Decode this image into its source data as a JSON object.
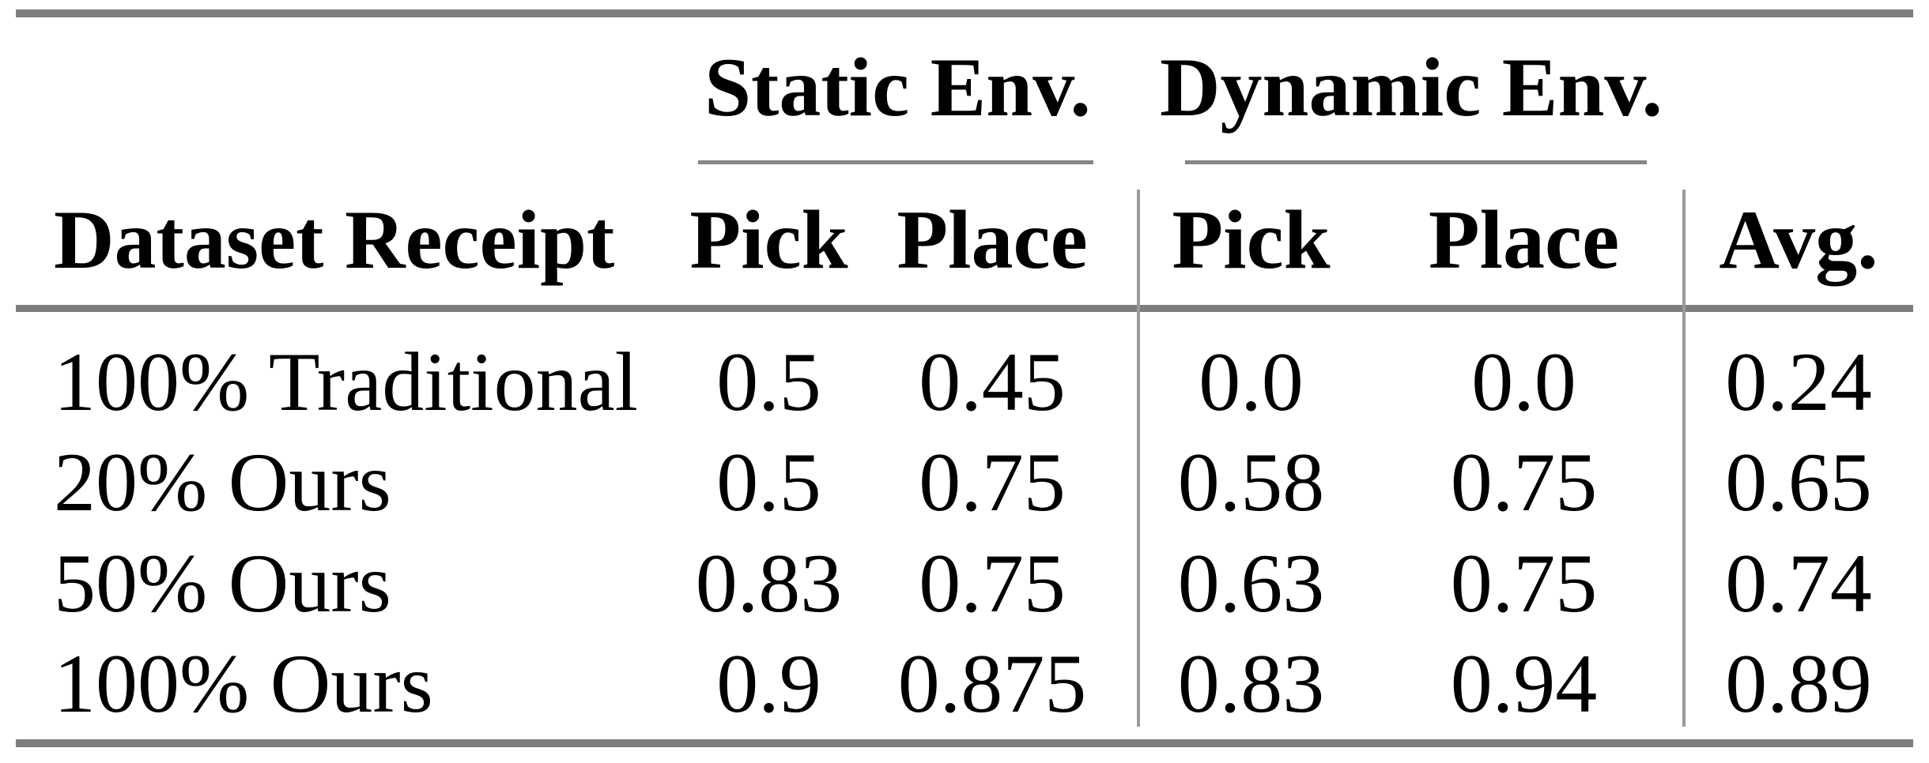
{
  "table": {
    "groups": [
      {
        "label": "Static Env."
      },
      {
        "label": "Dynamic Env."
      }
    ],
    "columns": [
      "Dataset Receipt",
      "Pick",
      "Place",
      "Pick",
      "Place",
      "Avg."
    ],
    "rows": [
      {
        "label": "100% Traditional",
        "values": [
          "0.5",
          "0.45",
          "0.0",
          "0.0",
          "0.24"
        ]
      },
      {
        "label": "20% Ours",
        "values": [
          "0.5",
          "0.75",
          "0.58",
          "0.75",
          "0.65"
        ]
      },
      {
        "label": "50% Ours",
        "values": [
          "0.83",
          "0.75",
          "0.63",
          "0.75",
          "0.74"
        ]
      },
      {
        "label": "100% Ours",
        "values": [
          "0.9",
          "0.875",
          "0.83",
          "0.94",
          "0.89"
        ]
      }
    ],
    "colors": {
      "rule_thick": "#7d7d7d",
      "rule_cmid": "#868686",
      "rule_vertical": "#9a9a9a",
      "text": "#000000",
      "background": "#ffffff"
    }
  },
  "chart_data": {
    "type": "table",
    "column_groups": [
      "Static Env.",
      "Dynamic Env."
    ],
    "columns": [
      "Dataset Receipt",
      "Static Env. Pick",
      "Static Env. Place",
      "Dynamic Env. Pick",
      "Dynamic Env. Place",
      "Avg."
    ],
    "rows": [
      [
        "100% Traditional",
        0.5,
        0.45,
        0.0,
        0.0,
        0.24
      ],
      [
        "20% Ours",
        0.5,
        0.75,
        0.58,
        0.75,
        0.65
      ],
      [
        "50% Ours",
        0.83,
        0.75,
        0.63,
        0.75,
        0.74
      ],
      [
        "100% Ours",
        0.9,
        0.875,
        0.83,
        0.94,
        0.89
      ]
    ]
  }
}
